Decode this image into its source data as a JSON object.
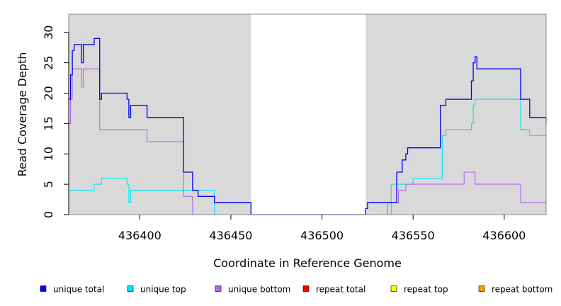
{
  "chart_data": {
    "type": "line",
    "xlabel": "Coordinate in Reference Genome",
    "ylabel": "Read Coverage Depth",
    "xlim": [
      436361,
      436623
    ],
    "ylim": [
      0,
      33
    ],
    "x_ticks": [
      436400,
      436450,
      436500,
      436550,
      436600
    ],
    "y_ticks": [
      0,
      5,
      10,
      15,
      20,
      25,
      30
    ],
    "shaded_regions": [
      {
        "x0": 436361,
        "x1": 436461,
        "color": "#d9d9d9"
      },
      {
        "x0": 436524,
        "x1": 436623,
        "color": "#d9d9d9"
      }
    ],
    "legend_position": "bottom",
    "series": [
      {
        "name": "unique total",
        "color": "#0000ee",
        "x": [
          436361,
          436362,
          436363,
          436364,
          436367,
          436368,
          436369,
          436371,
          436372,
          436375,
          436376,
          436377,
          436378,
          436379,
          436383,
          436389,
          436393,
          436394,
          436395,
          436396,
          436398,
          436404,
          436420,
          436424,
          436429,
          436432,
          436441,
          436461,
          436475,
          436500,
          436523,
          436524,
          436525,
          436527,
          436539,
          436541,
          436542,
          436544,
          436546,
          436547,
          436548,
          436550,
          436565,
          436566,
          436568,
          436578,
          436582,
          436583,
          436584,
          436585,
          436601,
          436609,
          436614,
          436623
        ],
        "y": [
          19,
          23,
          27,
          28,
          28,
          25,
          28,
          28,
          28,
          29,
          29,
          29,
          19,
          20,
          20,
          20,
          19,
          16,
          18,
          18,
          18,
          16,
          16,
          7,
          4,
          3,
          2,
          0,
          0,
          0,
          0,
          1,
          2,
          2,
          2,
          7,
          7,
          9,
          10,
          11,
          11,
          11,
          18,
          18,
          19,
          19,
          22,
          25,
          26,
          24,
          24,
          19,
          16,
          15
        ]
      },
      {
        "name": "unique top",
        "color": "#00e5ee",
        "x": [
          436361,
          436372,
          436375,
          436377,
          436378,
          436379,
          436385,
          436390,
          436393,
          436394,
          436395,
          436396,
          436400,
          436420,
          436424,
          436429,
          436432,
          436441,
          436461,
          436500,
          436537,
          436538,
          436548,
          436550,
          436565,
          436566,
          436568,
          436578,
          436582,
          436583,
          436584,
          436585,
          436601,
          436609,
          436614,
          436623
        ],
        "y": [
          4,
          4,
          5,
          5,
          5,
          6,
          6,
          6,
          5,
          2,
          4,
          4,
          4,
          4,
          4,
          4,
          4,
          0,
          0,
          0,
          0,
          5,
          5,
          6,
          6,
          13,
          14,
          14,
          15,
          18,
          19,
          19,
          19,
          14,
          13,
          13
        ],
        "y_full": [
          4,
          4,
          5,
          5,
          5,
          6,
          6,
          6,
          5,
          2,
          4,
          4,
          4,
          4,
          4,
          4,
          4,
          0,
          0,
          0,
          0,
          5,
          5,
          6,
          6,
          13,
          14,
          14,
          15,
          18,
          19,
          19,
          19,
          14,
          13,
          13
        ]
      },
      {
        "name": "unique bottom",
        "color": "#b068e8",
        "x": [
          436361,
          436362,
          436363,
          436364,
          436367,
          436368,
          436369,
          436375,
          436376,
          436377,
          436378,
          436379,
          436383,
          436389,
          436396,
          436404,
          436410,
          436420,
          436424,
          436429,
          436432,
          436461,
          436500,
          436536,
          436541,
          436542,
          436546,
          436547,
          436555,
          436565,
          436578,
          436582,
          436584,
          436585,
          436600,
          436609,
          436614,
          436623
        ],
        "y": [
          15,
          19,
          24,
          24,
          24,
          21,
          24,
          24,
          24,
          24,
          14,
          14,
          14,
          14,
          14,
          12,
          12,
          12,
          3,
          0,
          0,
          0,
          0,
          2,
          2,
          4,
          5,
          5,
          5,
          5,
          7,
          7,
          5,
          5,
          5,
          2,
          2,
          2
        ]
      },
      {
        "name": "repeat total",
        "color": "#ee0000",
        "x": [
          436361,
          436623
        ],
        "y": [
          0,
          0
        ]
      },
      {
        "name": "repeat top",
        "color": "#ffff00",
        "x": [
          436361,
          436623
        ],
        "y": [
          0,
          0
        ]
      },
      {
        "name": "repeat bottom",
        "color": "#eea000",
        "x": [
          436361,
          436623
        ],
        "y": [
          0,
          0
        ]
      }
    ]
  }
}
